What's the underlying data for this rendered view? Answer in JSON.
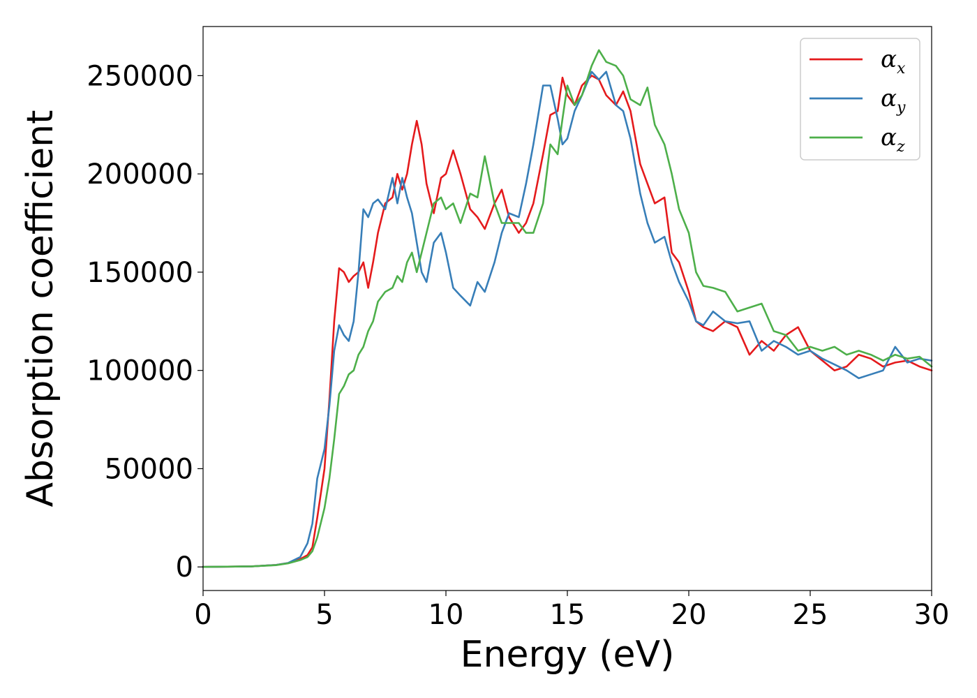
{
  "chart_data": {
    "type": "line",
    "title": "",
    "xlabel": "Energy (eV)",
    "ylabel": "Absorption coefficient",
    "xlim": [
      0,
      30
    ],
    "ylim": [
      -12000,
      275000
    ],
    "xticks": [
      0,
      5,
      10,
      15,
      20,
      25,
      30
    ],
    "yticks": [
      0,
      50000,
      100000,
      150000,
      200000,
      250000
    ],
    "xtick_labels": [
      "0",
      "5",
      "10",
      "15",
      "20",
      "25",
      "30"
    ],
    "ytick_labels": [
      "0",
      "50000",
      "100000",
      "150000",
      "200000",
      "250000"
    ],
    "grid": false,
    "legend_position": "top-right",
    "series": [
      {
        "name": "αx",
        "symbol": "α",
        "subscript": "x",
        "color": "#e41a1c",
        "x": [
          0,
          2,
          3,
          3.5,
          4,
          4.3,
          4.5,
          4.7,
          5.0,
          5.2,
          5.4,
          5.6,
          5.8,
          6.0,
          6.2,
          6.4,
          6.6,
          6.8,
          7.0,
          7.2,
          7.5,
          7.8,
          8.0,
          8.2,
          8.4,
          8.6,
          8.8,
          9.0,
          9.2,
          9.5,
          9.8,
          10.0,
          10.3,
          10.6,
          11.0,
          11.3,
          11.6,
          12.0,
          12.3,
          12.6,
          13.0,
          13.3,
          13.6,
          14.0,
          14.3,
          14.6,
          14.8,
          15.0,
          15.3,
          15.6,
          16.0,
          16.3,
          16.6,
          17.0,
          17.3,
          17.6,
          18.0,
          18.3,
          18.6,
          19.0,
          19.3,
          19.6,
          20.0,
          20.3,
          20.6,
          21.0,
          21.5,
          22.0,
          22.5,
          23.0,
          23.5,
          24.0,
          24.5,
          25.0,
          25.5,
          26.0,
          26.5,
          27.0,
          27.5,
          28.0,
          28.5,
          29.0,
          29.5,
          30.0
        ],
        "values": [
          0,
          300,
          1000,
          2000,
          4000,
          6000,
          10000,
          25000,
          50000,
          85000,
          125000,
          152000,
          150000,
          145000,
          148000,
          150000,
          155000,
          142000,
          155000,
          170000,
          185000,
          188000,
          200000,
          192000,
          200000,
          215000,
          227000,
          215000,
          195000,
          180000,
          198000,
          200000,
          212000,
          200000,
          182000,
          178000,
          172000,
          185000,
          192000,
          178000,
          170000,
          175000,
          185000,
          210000,
          230000,
          232000,
          249000,
          240000,
          235000,
          245000,
          250000,
          248000,
          240000,
          235000,
          242000,
          232000,
          205000,
          195000,
          185000,
          188000,
          160000,
          155000,
          140000,
          125000,
          122000,
          120000,
          125000,
          122000,
          108000,
          115000,
          110000,
          118000,
          122000,
          110000,
          105000,
          100000,
          102000,
          108000,
          106000,
          102000,
          104000,
          105000,
          102000,
          100000
        ]
      },
      {
        "name": "αy",
        "symbol": "α",
        "subscript": "y",
        "color": "#377eb8",
        "x": [
          0,
          2,
          3,
          3.5,
          4,
          4.3,
          4.5,
          4.7,
          5.0,
          5.2,
          5.4,
          5.6,
          5.8,
          6.0,
          6.2,
          6.4,
          6.6,
          6.8,
          7.0,
          7.2,
          7.5,
          7.8,
          8.0,
          8.2,
          8.4,
          8.6,
          8.8,
          9.0,
          9.2,
          9.5,
          9.8,
          10.0,
          10.3,
          10.6,
          11.0,
          11.3,
          11.6,
          12.0,
          12.3,
          12.6,
          13.0,
          13.3,
          13.6,
          14.0,
          14.3,
          14.6,
          14.8,
          15.0,
          15.3,
          15.6,
          16.0,
          16.3,
          16.6,
          17.0,
          17.3,
          17.6,
          18.0,
          18.3,
          18.6,
          19.0,
          19.3,
          19.6,
          20.0,
          20.3,
          20.6,
          21.0,
          21.5,
          22.0,
          22.5,
          23.0,
          23.5,
          24.0,
          24.5,
          25.0,
          25.5,
          26.0,
          26.5,
          27.0,
          27.5,
          28.0,
          28.5,
          29.0,
          29.5,
          30.0
        ],
        "values": [
          0,
          300,
          1000,
          2000,
          5000,
          12000,
          22000,
          45000,
          60000,
          82000,
          110000,
          123000,
          118000,
          115000,
          125000,
          150000,
          182000,
          178000,
          185000,
          187000,
          182000,
          198000,
          185000,
          198000,
          188000,
          180000,
          165000,
          150000,
          145000,
          165000,
          170000,
          160000,
          142000,
          138000,
          133000,
          145000,
          140000,
          155000,
          170000,
          180000,
          178000,
          195000,
          215000,
          245000,
          245000,
          228000,
          215000,
          218000,
          232000,
          240000,
          252000,
          248000,
          252000,
          235000,
          232000,
          218000,
          190000,
          175000,
          165000,
          168000,
          155000,
          145000,
          135000,
          125000,
          123000,
          130000,
          125000,
          124000,
          125000,
          110000,
          115000,
          112000,
          108000,
          110000,
          106000,
          103000,
          100000,
          96000,
          98000,
          100000,
          112000,
          104000,
          106000,
          105000
        ]
      },
      {
        "name": "αz",
        "symbol": "α",
        "subscript": "z",
        "color": "#4daf4a",
        "x": [
          0,
          2,
          3,
          3.5,
          4,
          4.3,
          4.5,
          4.7,
          5.0,
          5.2,
          5.4,
          5.6,
          5.8,
          6.0,
          6.2,
          6.4,
          6.6,
          6.8,
          7.0,
          7.2,
          7.5,
          7.8,
          8.0,
          8.2,
          8.4,
          8.6,
          8.8,
          9.0,
          9.2,
          9.5,
          9.8,
          10.0,
          10.3,
          10.6,
          11.0,
          11.3,
          11.6,
          12.0,
          12.3,
          12.6,
          13.0,
          13.3,
          13.6,
          14.0,
          14.3,
          14.6,
          14.8,
          15.0,
          15.3,
          15.6,
          16.0,
          16.3,
          16.6,
          17.0,
          17.3,
          17.6,
          18.0,
          18.3,
          18.6,
          19.0,
          19.3,
          19.6,
          20.0,
          20.3,
          20.6,
          21.0,
          21.5,
          22.0,
          22.5,
          23.0,
          23.5,
          24.0,
          24.5,
          25.0,
          25.5,
          26.0,
          26.5,
          27.0,
          27.5,
          28.0,
          28.5,
          29.0,
          29.5,
          30.0
        ],
        "values": [
          0,
          300,
          900,
          1800,
          3500,
          5000,
          8000,
          15000,
          30000,
          45000,
          65000,
          88000,
          92000,
          98000,
          100000,
          108000,
          112000,
          120000,
          125000,
          135000,
          140000,
          142000,
          148000,
          145000,
          155000,
          160000,
          150000,
          160000,
          170000,
          185000,
          188000,
          182000,
          185000,
          175000,
          190000,
          188000,
          209000,
          185000,
          175000,
          175000,
          175000,
          170000,
          170000,
          185000,
          215000,
          210000,
          228000,
          245000,
          235000,
          240000,
          255000,
          263000,
          257000,
          255000,
          250000,
          238000,
          235000,
          244000,
          225000,
          215000,
          200000,
          182000,
          170000,
          150000,
          143000,
          142000,
          140000,
          130000,
          132000,
          134000,
          120000,
          118000,
          110000,
          112000,
          110000,
          112000,
          108000,
          110000,
          108000,
          105000,
          108000,
          106000,
          107000,
          102000
        ]
      }
    ]
  }
}
